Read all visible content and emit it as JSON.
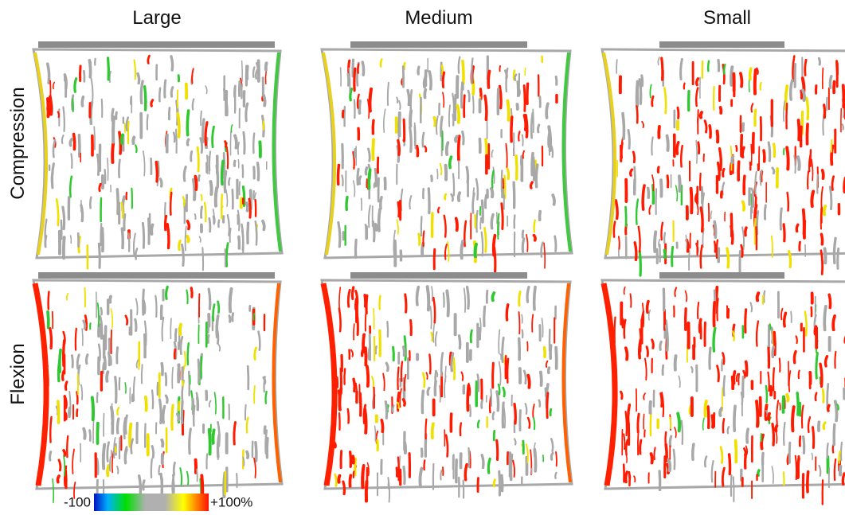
{
  "columns": [
    "Large",
    "Medium",
    "Small"
  ],
  "rows": [
    "Compression",
    "Flexion"
  ],
  "colorbar": {
    "min_label": "-100",
    "max_label": "+100%"
  }
}
